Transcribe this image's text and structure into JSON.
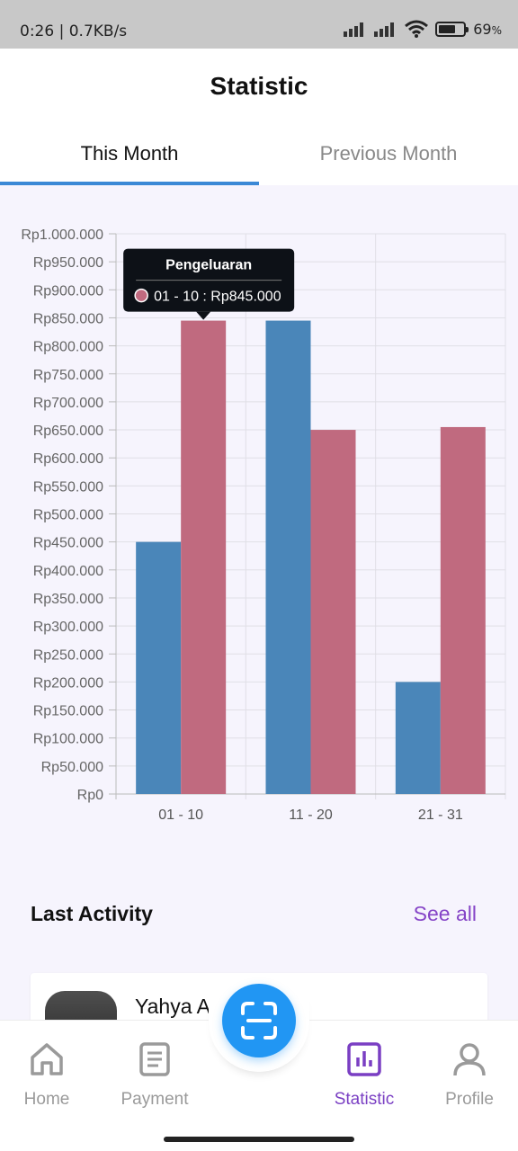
{
  "status_bar": {
    "time": "0:26",
    "speed": "0.7KB/s",
    "battery": "69",
    "battery_unit": "%"
  },
  "page": {
    "title": "Statistic"
  },
  "tabs": [
    {
      "label": "This Month",
      "active": true
    },
    {
      "label": "Previous Month",
      "active": false
    }
  ],
  "chart_data": {
    "type": "bar",
    "categories": [
      "01 - 10",
      "11 - 20",
      "21 - 31"
    ],
    "series": [
      {
        "values": [
          450000,
          845000,
          200000
        ],
        "color": "#4a86b9"
      },
      {
        "name": "Pengeluaran",
        "values": [
          845000,
          650000,
          655000
        ],
        "color": "#c06a7f"
      }
    ],
    "ylim": [
      0,
      1000000
    ],
    "y_ticks": [
      "Rp0",
      "Rp50.000",
      "Rp100.000",
      "Rp150.000",
      "Rp200.000",
      "Rp250.000",
      "Rp300.000",
      "Rp350.000",
      "Rp400.000",
      "Rp450.000",
      "Rp500.000",
      "Rp550.000",
      "Rp600.000",
      "Rp650.000",
      "Rp700.000",
      "Rp750.000",
      "Rp800.000",
      "Rp850.000",
      "Rp900.000",
      "Rp950.000",
      "Rp1.000.000"
    ],
    "grid": true,
    "tooltip": {
      "title": "Pengeluaran",
      "text": "01 - 10 : Rp845.000",
      "series_index": 1,
      "category_index": 0
    }
  },
  "last_activity": {
    "title": "Last Activity",
    "see_all": "See all",
    "items": [
      {
        "name": "Yahya Alf"
      }
    ]
  },
  "nav": {
    "home": "Home",
    "payment": "Payment",
    "statistic": "Statistic",
    "profile": "Profile"
  }
}
